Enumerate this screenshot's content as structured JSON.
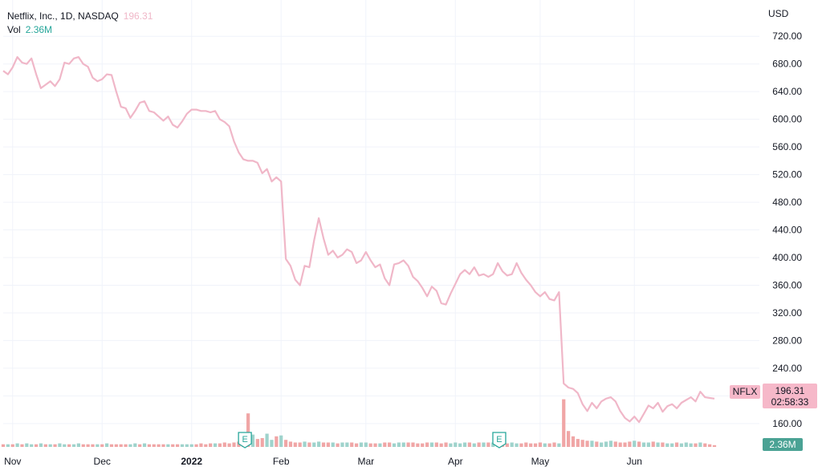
{
  "legend": {
    "symbol_line": "Netflix, Inc., 1D, NASDAQ",
    "last_price": "196.31",
    "vol_label": "Vol",
    "vol_value": "2.36M"
  },
  "currency": "USD",
  "badges": {
    "ticker": "NFLX",
    "price": "196.31",
    "countdown": "02:58:33",
    "volume": "2.36M"
  },
  "earnings_marker": "E",
  "colors": {
    "line": "#f0b7c8",
    "vol_up": "#9fd3cc",
    "vol_down": "#f0a6a6",
    "vol_up_strong": "#a6dbd2",
    "price_badge": "#f6b8c9",
    "vol_badge": "#4aa294",
    "earnings": "#26a69a",
    "grid": "#f0f3fa"
  },
  "chart_data": {
    "type": "line",
    "x_labels": [
      {
        "label": "Nov",
        "bold": false,
        "index": 2
      },
      {
        "label": "Dec",
        "bold": false,
        "index": 21
      },
      {
        "label": "2022",
        "bold": true,
        "index": 40
      },
      {
        "label": "Feb",
        "bold": false,
        "index": 59
      },
      {
        "label": "Mar",
        "bold": false,
        "index": 77
      },
      {
        "label": "Apr",
        "bold": false,
        "index": 96
      },
      {
        "label": "May",
        "bold": false,
        "index": 114
      },
      {
        "label": "Jun",
        "bold": false,
        "index": 134
      }
    ],
    "y_ticks": [
      160,
      200,
      240,
      280,
      320,
      360,
      400,
      440,
      480,
      520,
      560,
      600,
      640,
      680,
      720
    ],
    "y_ticks_labeled": [
      "160.00",
      "240.00",
      "280.00",
      "320.00",
      "360.00",
      "400.00",
      "440.00",
      "480.00",
      "520.00",
      "560.00",
      "600.00",
      "640.00",
      "680.00",
      "720.00"
    ],
    "ylim": [
      125,
      740
    ],
    "earnings_indices": [
      52,
      106
    ],
    "price": [
      670,
      665,
      675,
      690,
      682,
      680,
      688,
      665,
      645,
      650,
      655,
      648,
      658,
      682,
      680,
      688,
      690,
      680,
      676,
      660,
      655,
      658,
      665,
      664,
      640,
      618,
      616,
      602,
      612,
      624,
      626,
      612,
      610,
      604,
      598,
      604,
      592,
      588,
      597,
      608,
      614,
      614,
      612,
      612,
      610,
      612,
      600,
      596,
      590,
      568,
      552,
      542,
      540,
      540,
      537,
      522,
      528,
      510,
      516,
      510,
      398,
      388,
      368,
      360,
      388,
      386,
      425,
      457,
      428,
      404,
      410,
      400,
      404,
      412,
      408,
      392,
      396,
      408,
      396,
      386,
      390,
      370,
      360,
      390,
      392,
      396,
      388,
      372,
      366,
      356,
      344,
      358,
      352,
      334,
      332,
      348,
      362,
      376,
      382,
      376,
      386,
      374,
      376,
      372,
      376,
      392,
      380,
      374,
      376,
      392,
      378,
      368,
      360,
      350,
      344,
      350,
      340,
      338,
      350,
      218,
      212,
      210,
      204,
      188,
      178,
      190,
      182,
      192,
      196,
      198,
      192,
      178,
      168,
      163,
      170,
      162,
      174,
      186,
      182,
      190,
      177,
      185,
      188,
      182,
      190,
      194,
      198,
      192,
      206,
      198,
      197,
      196
    ],
    "volume": [
      3,
      3,
      3,
      4,
      3,
      4,
      3,
      3,
      4,
      3,
      3,
      3,
      4,
      3,
      3,
      3,
      4,
      3,
      3,
      3,
      3,
      3,
      4,
      3,
      3,
      3,
      3,
      3,
      4,
      3,
      4,
      3,
      3,
      3,
      3,
      3,
      3,
      3,
      3,
      3,
      3,
      3,
      4,
      3,
      4,
      4,
      4,
      5,
      4,
      5,
      6,
      7,
      38,
      14,
      9,
      10,
      15,
      8,
      12,
      13,
      8,
      6,
      5,
      5,
      6,
      5,
      5,
      6,
      5,
      5,
      5,
      4,
      5,
      5,
      5,
      4,
      5,
      5,
      4,
      4,
      4,
      5,
      5,
      4,
      5,
      5,
      5,
      5,
      4,
      4,
      5,
      5,
      5,
      4,
      5,
      4,
      5,
      4,
      5,
      5,
      4,
      5,
      5,
      5,
      5,
      4,
      5,
      4,
      5,
      4,
      4,
      5,
      4,
      4,
      5,
      4,
      4,
      5,
      4,
      54,
      18,
      12,
      9,
      8,
      7,
      7,
      6,
      5,
      6,
      7,
      6,
      5,
      5,
      6,
      7,
      6,
      5,
      5,
      6,
      5,
      5,
      4,
      4,
      5,
      4,
      5,
      4,
      4,
      5,
      4,
      3,
      2
    ],
    "volume_up": [
      0,
      1,
      0,
      1,
      0,
      1,
      1,
      0,
      1,
      0,
      1,
      0,
      1,
      1,
      0,
      1,
      1,
      0,
      0,
      0,
      1,
      0,
      1,
      0,
      0,
      0,
      0,
      1,
      1,
      0,
      1,
      0,
      0,
      0,
      0,
      1,
      0,
      0,
      1,
      1,
      1,
      0,
      0,
      0,
      0,
      1,
      0,
      0,
      0,
      0,
      0,
      0,
      0,
      1,
      0,
      0,
      1,
      1,
      0,
      1,
      0,
      0,
      0,
      0,
      1,
      0,
      1,
      1,
      0,
      0,
      1,
      0,
      1,
      1,
      0,
      0,
      1,
      1,
      0,
      0,
      1,
      0,
      0,
      1,
      1,
      1,
      0,
      0,
      0,
      0,
      0,
      1,
      0,
      0,
      0,
      1,
      1,
      1,
      1,
      0,
      1,
      0,
      1,
      0,
      1,
      1,
      0,
      0,
      1,
      1,
      0,
      0,
      0,
      0,
      0,
      1,
      0,
      0,
      1,
      0,
      0,
      0,
      0,
      0,
      0,
      1,
      0,
      1,
      1,
      1,
      0,
      0,
      0,
      0,
      1,
      0,
      1,
      1,
      0,
      1,
      0,
      1,
      1,
      0,
      1,
      1,
      1,
      0,
      1,
      0,
      0,
      0
    ],
    "volume_max": 60
  }
}
